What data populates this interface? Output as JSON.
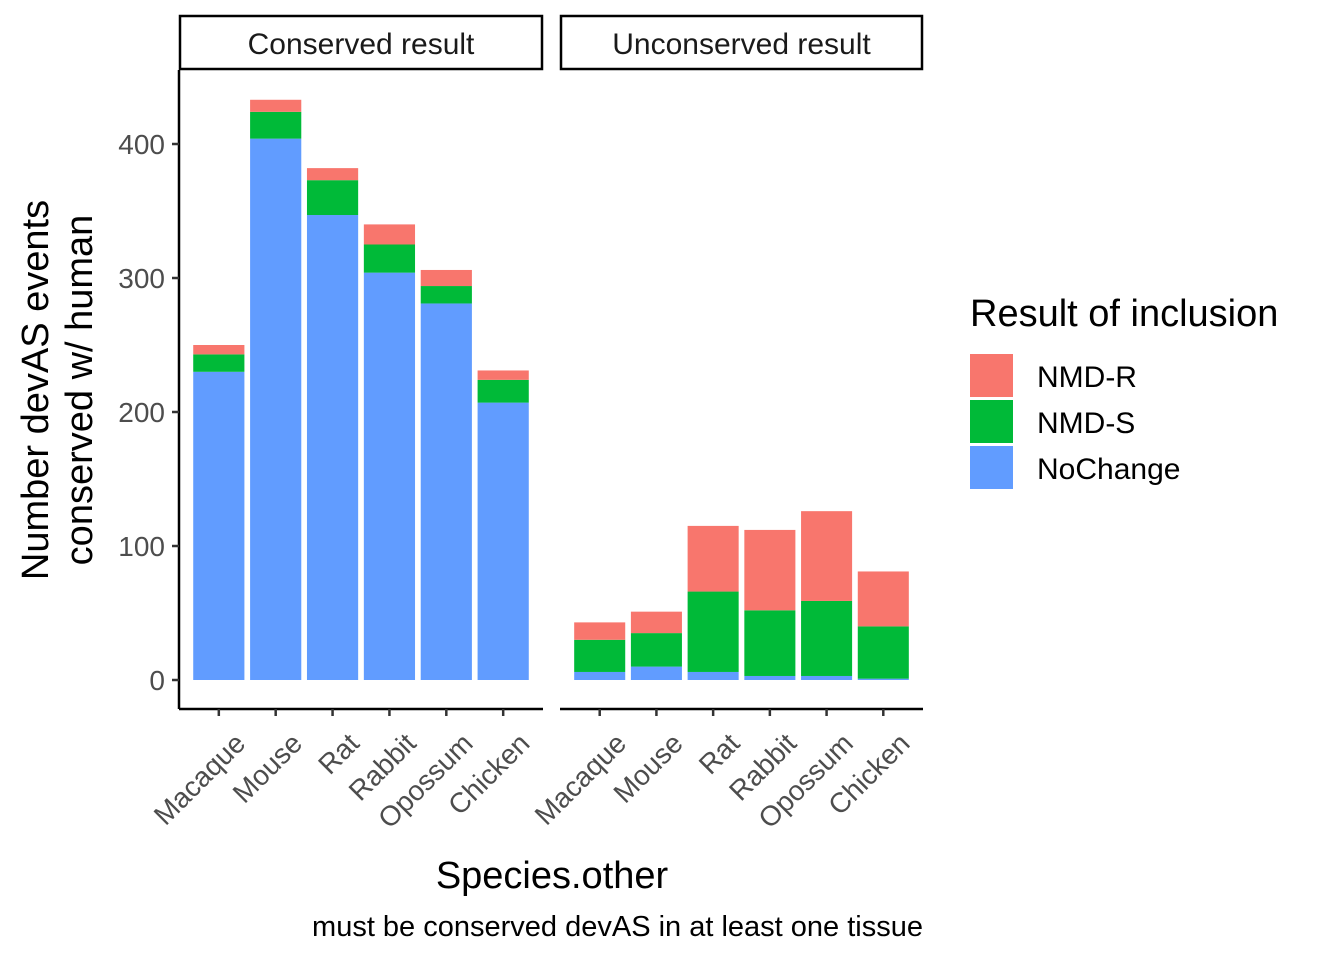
{
  "chart_data": {
    "type": "bar",
    "stacked": true,
    "xlabel": "Species.other",
    "ylabel_lines": [
      "Number devAS events",
      "conserved w/ human"
    ],
    "caption": "must be conserved devAS in at least one tissue",
    "ylim": [
      0,
      450
    ],
    "yticks": [
      0,
      100,
      200,
      300,
      400
    ],
    "grid": false,
    "legend_placement": "right",
    "legend": {
      "title": "Result of inclusion",
      "entries": [
        "NMD-R",
        "NMD-S",
        "NoChange"
      ]
    },
    "colors": {
      "NMD-R": "#F8766D",
      "NMD-S": "#00BA38",
      "NoChange": "#619CFF"
    },
    "stack_order": [
      "NoChange",
      "NMD-S",
      "NMD-R"
    ],
    "facets": [
      {
        "strip": "Conserved result",
        "categories": [
          "Macaque",
          "Mouse",
          "Rat",
          "Rabbit",
          "Opossum",
          "Chicken"
        ],
        "series": [
          {
            "name": "NoChange",
            "values": [
              230,
              404,
              347,
              304,
              281,
              207
            ]
          },
          {
            "name": "NMD-S",
            "values": [
              13,
              20,
              26,
              21,
              13,
              17
            ]
          },
          {
            "name": "NMD-R",
            "values": [
              7,
              9,
              9,
              15,
              12,
              7
            ]
          }
        ]
      },
      {
        "strip": "Unconserved result",
        "categories": [
          "Macaque",
          "Mouse",
          "Rat",
          "Rabbit",
          "Opossum",
          "Chicken"
        ],
        "series": [
          {
            "name": "NoChange",
            "values": [
              6,
              10,
              6,
              3,
              3,
              1
            ]
          },
          {
            "name": "NMD-S",
            "values": [
              24,
              25,
              60,
              49,
              56,
              39
            ]
          },
          {
            "name": "NMD-R",
            "values": [
              13,
              16,
              49,
              60,
              67,
              41
            ]
          }
        ]
      }
    ]
  }
}
